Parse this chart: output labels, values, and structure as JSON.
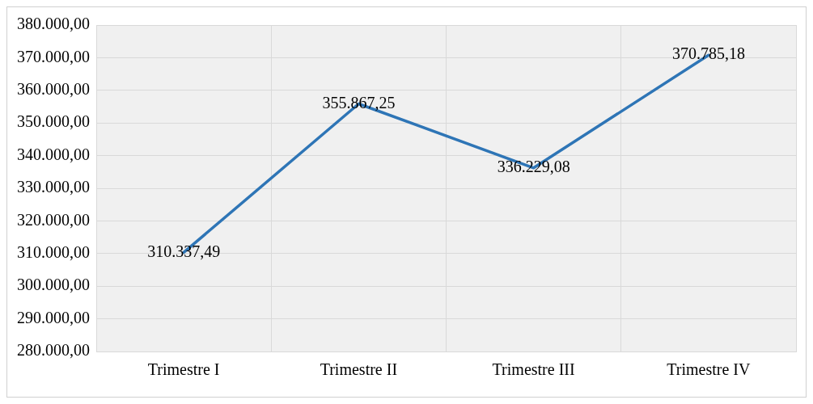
{
  "chart_data": {
    "type": "line",
    "categories": [
      "Trimestre I",
      "Trimestre II",
      "Trimestre III",
      "Trimestre IV"
    ],
    "series": [
      {
        "color": "#2e75b6",
        "values": [
          310337.49,
          355867.25,
          336229.08,
          370785.18
        ],
        "value_labels": [
          "310.337,49",
          "355.867,25",
          "336.229,08",
          "370.785,18"
        ]
      }
    ],
    "ylim": [
      280000,
      380000
    ],
    "yticks": [
      {
        "value": 280000,
        "label": "280.000,00"
      },
      {
        "value": 290000,
        "label": "290.000,00"
      },
      {
        "value": 300000,
        "label": "300.000,00"
      },
      {
        "value": 310000,
        "label": "310.000,00"
      },
      {
        "value": 320000,
        "label": "320.000,00"
      },
      {
        "value": 330000,
        "label": "330.000,00"
      },
      {
        "value": 340000,
        "label": "340.000,00"
      },
      {
        "value": 350000,
        "label": "350.000,00"
      },
      {
        "value": 360000,
        "label": "360.000,00"
      },
      {
        "value": 370000,
        "label": "370.000,00"
      },
      {
        "value": 380000,
        "label": "380.000,00"
      }
    ],
    "grid": true,
    "legend": false,
    "marker": "none",
    "line_style": "solid"
  }
}
